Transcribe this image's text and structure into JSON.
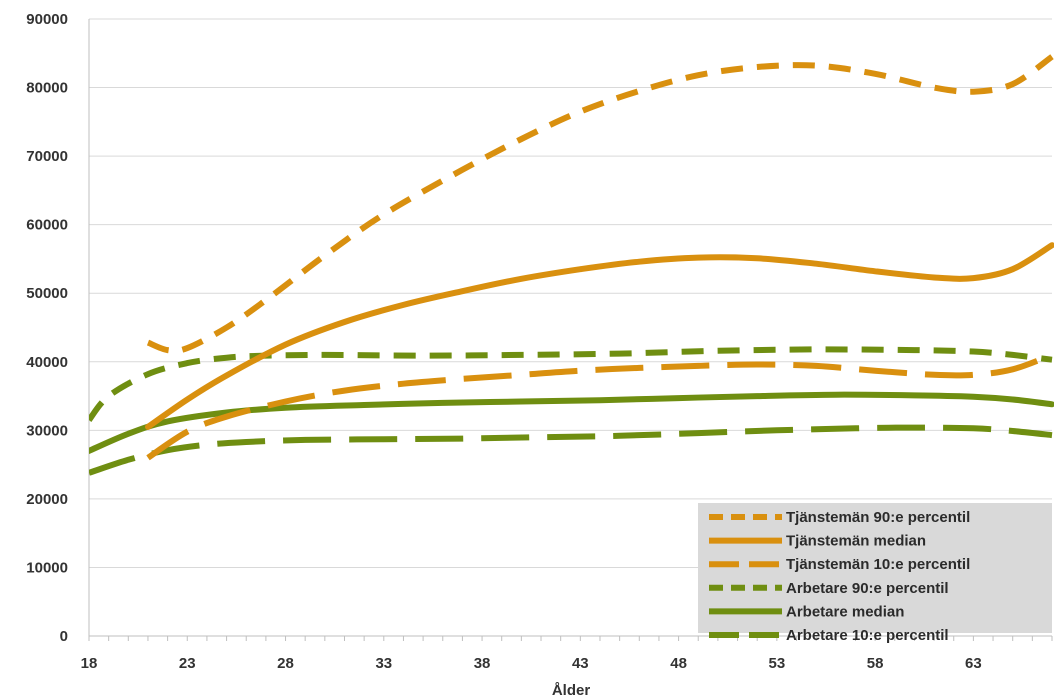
{
  "chart_data": {
    "type": "line",
    "title": "",
    "xlabel": "Ålder",
    "ylabel": "",
    "xlim": [
      18,
      67
    ],
    "ylim": [
      0,
      90000
    ],
    "x_ticks": [
      18,
      23,
      28,
      33,
      38,
      43,
      48,
      53,
      58,
      63
    ],
    "y_ticks": [
      0,
      10000,
      20000,
      30000,
      40000,
      50000,
      60000,
      70000,
      80000,
      90000
    ],
    "grid": "horizontal",
    "legend_position": "bottom-right",
    "series": [
      {
        "name": "Tjänstemän 90:e percentil",
        "color": "#D9900F",
        "style": "dashed",
        "x": [
          21,
          22,
          23,
          25,
          27,
          30,
          33,
          37,
          40,
          43,
          46,
          49,
          52,
          55,
          58,
          61,
          63,
          65,
          67
        ],
        "y": [
          42800,
          41700,
          42000,
          45000,
          49000,
          55500,
          61500,
          68000,
          72500,
          76500,
          79500,
          81800,
          83000,
          83200,
          82000,
          80000,
          79400,
          80500,
          84500
        ]
      },
      {
        "name": "Tjänstemän median",
        "color": "#D9900F",
        "style": "solid",
        "x": [
          21,
          23,
          25,
          28,
          31,
          34,
          37,
          40,
          43,
          46,
          49,
          52,
          55,
          58,
          61,
          63,
          65,
          67
        ],
        "y": [
          30500,
          34500,
          38000,
          42500,
          45800,
          48300,
          50300,
          52100,
          53500,
          54600,
          55200,
          55100,
          54300,
          53200,
          52300,
          52200,
          53500,
          57000
        ]
      },
      {
        "name": "Tjänstemän 10:e percentil",
        "color": "#D9900F",
        "style": "longdash",
        "x": [
          21,
          23,
          25,
          28,
          31,
          34,
          37,
          40,
          43,
          46,
          49,
          52,
          55,
          58,
          61,
          63,
          65,
          67
        ],
        "y": [
          26000,
          29800,
          32000,
          34200,
          35800,
          36800,
          37500,
          38100,
          38700,
          39100,
          39400,
          39600,
          39400,
          38700,
          38100,
          38100,
          38900,
          41000
        ]
      },
      {
        "name": "Arbetare 90:e percentil",
        "color": "#6F8E11",
        "style": "dashed",
        "x": [
          18,
          19,
          21,
          23,
          25,
          27,
          30,
          35,
          40,
          45,
          50,
          55,
          60,
          63,
          65,
          67
        ],
        "y": [
          31500,
          35000,
          38200,
          39800,
          40600,
          40900,
          41000,
          40900,
          41000,
          41200,
          41600,
          41800,
          41700,
          41500,
          41000,
          40300
        ]
      },
      {
        "name": "Arbetare median",
        "color": "#6F8E11",
        "style": "solid",
        "x": [
          18,
          20,
          22,
          25,
          28,
          32,
          36,
          40,
          44,
          48,
          52,
          56,
          60,
          63,
          65,
          67
        ],
        "y": [
          27000,
          29500,
          31300,
          32600,
          33300,
          33700,
          34000,
          34200,
          34400,
          34700,
          35000,
          35200,
          35100,
          34900,
          34500,
          33800
        ]
      },
      {
        "name": "Arbetare 10:e percentil",
        "color": "#6F8E11",
        "style": "longdash",
        "x": [
          18,
          20,
          22,
          24,
          26,
          29,
          33,
          37,
          41,
          45,
          49,
          53,
          57,
          60,
          63,
          65,
          67
        ],
        "y": [
          23800,
          25700,
          27100,
          27900,
          28300,
          28600,
          28700,
          28800,
          29000,
          29200,
          29600,
          30000,
          30300,
          30400,
          30300,
          29900,
          29300
        ]
      }
    ]
  }
}
